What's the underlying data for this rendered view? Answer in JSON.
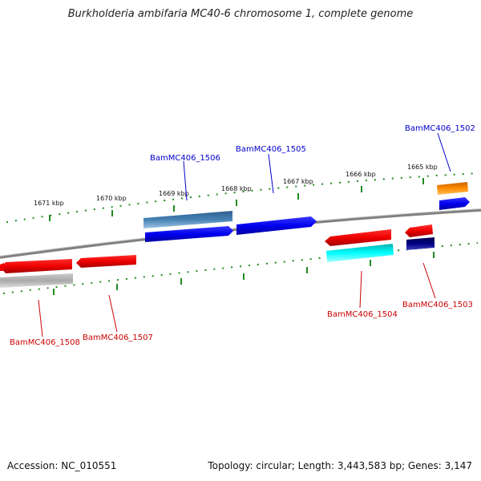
{
  "title": "Burkholderia ambifaria MC40-6 chromosome 1, complete genome",
  "footer": {
    "accession": "Accession: NC_010551",
    "summary": "Topology: circular; Length: 3,443,583 bp; Genes: 3,147"
  },
  "ticks": [
    "1671 kbp",
    "1670 kbp",
    "1669 kbp",
    "1668 kbp",
    "1667 kbp",
    "1666 kbp",
    "1665 kbp"
  ],
  "genes": [
    {
      "name": "BamMC406_1502",
      "strand": "forward",
      "color": "#0000cc"
    },
    {
      "name": "BamMC406_1503",
      "strand": "reverse",
      "color": "#cc0000"
    },
    {
      "name": "BamMC406_1504",
      "strand": "reverse",
      "color": "#cc0000"
    },
    {
      "name": "BamMC406_1505",
      "strand": "forward",
      "color": "#0000cc"
    },
    {
      "name": "BamMC406_1506",
      "strand": "forward",
      "color": "#0000cc"
    },
    {
      "name": "BamMC406_1507",
      "strand": "reverse",
      "color": "#cc0000"
    },
    {
      "name": "BamMC406_1508",
      "strand": "reverse",
      "color": "#cc0000"
    }
  ],
  "colors": {
    "forward_cds": "#0000ee",
    "reverse_cds": "#ee0000",
    "tick_green": "#228b22",
    "backbone": "#808080",
    "orange": "#ff8c00",
    "cyan": "#00ffff",
    "navy": "#000080",
    "steel": "#4682b4",
    "gray": "#a9a9a9"
  }
}
